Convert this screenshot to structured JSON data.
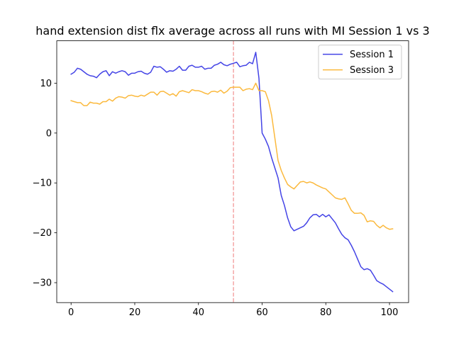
{
  "chart_data": {
    "type": "line",
    "title": "hand extension dist flx average across all runs with MI Session 1 vs 3",
    "xlabel": "",
    "ylabel": "",
    "xlim": [
      -4.5,
      106
    ],
    "ylim": [
      -34,
      18.5
    ],
    "xticks": [
      0,
      20,
      40,
      60,
      80,
      100
    ],
    "yticks": [
      -30,
      -20,
      -10,
      0,
      10
    ],
    "grid": false,
    "legend_position": "top-right",
    "vline": {
      "x": 51,
      "color": "#f4a6a6",
      "style": "dashed"
    },
    "series": [
      {
        "name": "Session 1",
        "color": "#4444e6",
        "x": [
          0,
          1,
          2,
          3,
          4,
          5,
          6,
          7,
          8,
          9,
          10,
          11,
          12,
          13,
          14,
          15,
          16,
          17,
          18,
          19,
          20,
          21,
          22,
          23,
          24,
          25,
          26,
          27,
          28,
          29,
          30,
          31,
          32,
          33,
          34,
          35,
          36,
          37,
          38,
          39,
          40,
          41,
          42,
          43,
          44,
          45,
          46,
          47,
          48,
          49,
          50,
          51,
          52,
          53,
          54,
          55,
          56,
          57,
          58,
          59,
          60,
          61,
          62,
          63,
          64,
          65,
          66,
          67,
          68,
          69,
          70,
          71,
          72,
          73,
          74,
          75,
          76,
          77,
          78,
          79,
          80,
          81,
          82,
          83,
          84,
          85,
          86,
          87,
          88,
          89,
          90,
          91,
          92,
          93,
          94,
          95,
          96,
          97,
          98,
          99,
          100,
          101
        ],
        "values": [
          11.8,
          12.2,
          13.0,
          12.8,
          12.3,
          11.8,
          11.5,
          11.4,
          11.1,
          11.8,
          12.3,
          12.5,
          11.5,
          12.3,
          12.0,
          12.3,
          12.5,
          12.3,
          11.6,
          12.0,
          12.0,
          12.3,
          12.4,
          12.0,
          11.8,
          12.2,
          13.4,
          13.2,
          13.3,
          12.8,
          12.2,
          12.5,
          12.4,
          12.8,
          13.4,
          12.6,
          12.6,
          13.4,
          13.6,
          13.2,
          13.2,
          13.4,
          12.8,
          13.0,
          13.0,
          13.6,
          13.8,
          14.2,
          13.7,
          13.5,
          13.8,
          14.0,
          14.2,
          13.3,
          13.5,
          13.6,
          14.2,
          13.9,
          16.2,
          11.0,
          0.0,
          -1.2,
          -2.7,
          -5.0,
          -7.0,
          -9.0,
          -12.5,
          -14.5,
          -17.0,
          -18.8,
          -19.6,
          -19.3,
          -19.0,
          -18.7,
          -18.0,
          -17.0,
          -16.4,
          -16.3,
          -16.8,
          -16.3,
          -16.8,
          -16.4,
          -17.2,
          -18.0,
          -19.2,
          -20.3,
          -21.0,
          -21.4,
          -22.5,
          -23.8,
          -25.3,
          -26.8,
          -27.4,
          -27.2,
          -27.5,
          -28.5,
          -29.6,
          -30.0,
          -30.3,
          -30.8,
          -31.3,
          -31.8
        ]
      },
      {
        "name": "Session 3",
        "color": "#fbb93d",
        "x": [
          0,
          1,
          2,
          3,
          4,
          5,
          6,
          7,
          8,
          9,
          10,
          11,
          12,
          13,
          14,
          15,
          16,
          17,
          18,
          19,
          20,
          21,
          22,
          23,
          24,
          25,
          26,
          27,
          28,
          29,
          30,
          31,
          32,
          33,
          34,
          35,
          36,
          37,
          38,
          39,
          40,
          41,
          42,
          43,
          44,
          45,
          46,
          47,
          48,
          49,
          50,
          51,
          52,
          53,
          54,
          55,
          56,
          57,
          58,
          59,
          60,
          61,
          62,
          63,
          64,
          65,
          66,
          67,
          68,
          69,
          70,
          71,
          72,
          73,
          74,
          75,
          76,
          77,
          78,
          79,
          80,
          81,
          82,
          83,
          84,
          85,
          86,
          87,
          88,
          89,
          90,
          91,
          92,
          93,
          94,
          95,
          96,
          97,
          98,
          99,
          100,
          101
        ],
        "values": [
          6.5,
          6.3,
          6.1,
          6.1,
          5.5,
          5.5,
          6.2,
          6.0,
          6.0,
          5.8,
          6.3,
          6.3,
          6.8,
          6.4,
          7.0,
          7.3,
          7.2,
          7.0,
          7.5,
          7.6,
          7.4,
          7.3,
          7.6,
          7.4,
          7.8,
          8.2,
          8.2,
          7.6,
          8.3,
          8.4,
          8.0,
          7.6,
          7.9,
          7.4,
          8.3,
          8.5,
          8.3,
          8.1,
          8.7,
          8.5,
          8.5,
          8.3,
          8.0,
          7.8,
          8.3,
          8.4,
          8.2,
          8.6,
          8.0,
          8.4,
          9.1,
          9.2,
          9.2,
          9.2,
          8.5,
          8.8,
          8.9,
          8.7,
          10.0,
          8.5,
          8.5,
          8.3,
          6.5,
          3.5,
          -1.0,
          -5.5,
          -7.5,
          -9.0,
          -10.3,
          -10.8,
          -11.2,
          -10.5,
          -9.8,
          -9.7,
          -10.0,
          -9.8,
          -10.0,
          -10.4,
          -10.7,
          -11.0,
          -11.2,
          -11.8,
          -12.4,
          -13.0,
          -13.2,
          -13.3,
          -13.0,
          -14.2,
          -15.5,
          -16.1,
          -16.1,
          -16.0,
          -16.5,
          -17.8,
          -17.6,
          -17.7,
          -18.5,
          -19.0,
          -18.5,
          -19.0,
          -19.3,
          -19.2
        ]
      }
    ]
  }
}
